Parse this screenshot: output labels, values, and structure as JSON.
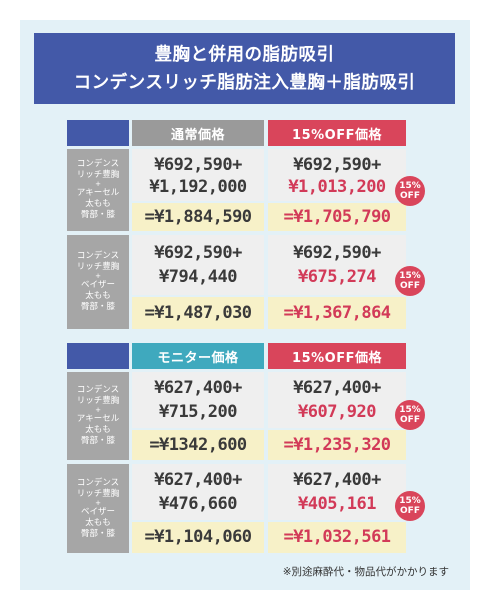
{
  "title": {
    "line1": "豊胸と併用の脂肪吸引",
    "line2": "コンデンスリッチ脂肪注入豊胸＋脂肪吸引"
  },
  "tables": [
    {
      "col_normal": "通常価格",
      "col_discount": "15%OFF価格",
      "rows": [
        {
          "label": [
            "コンデンス",
            "リッチ豊胸",
            "+",
            "アキーセル",
            "太もも",
            "臀部・膝"
          ],
          "normal": [
            "¥692,590+",
            "¥1,192,000"
          ],
          "normal_total": "=¥1,884,590",
          "discount": [
            "¥692,590+",
            "¥1,013,200"
          ],
          "discount_total": "=¥1,705,790",
          "badge": [
            "15%",
            "OFF"
          ]
        },
        {
          "label": [
            "コンデンス",
            "リッチ豊胸",
            "+",
            "ベイザー",
            "太もも",
            "臀部・膝"
          ],
          "normal": [
            "¥692,590+",
            "¥794,440"
          ],
          "normal_total": "=¥1,487,030",
          "discount": [
            "¥692,590+",
            "¥675,274"
          ],
          "discount_total": "=¥1,367,864",
          "badge": [
            "15%",
            "OFF"
          ]
        }
      ]
    },
    {
      "col_normal": "モニター価格",
      "col_discount": "15%OFF価格",
      "rows": [
        {
          "label": [
            "コンデンス",
            "リッチ豊胸",
            "+",
            "アキーセル",
            "太もも",
            "臀部・膝"
          ],
          "normal": [
            "¥627,400+",
            "¥715,200"
          ],
          "normal_total": "=¥1342,600",
          "discount": [
            "¥627,400+",
            "¥607,920"
          ],
          "discount_total": "=¥1,235,320",
          "badge": [
            "15%",
            "OFF"
          ]
        },
        {
          "label": [
            "コンデンス",
            "リッチ豊胸",
            "+",
            "ベイザー",
            "太もも",
            "臀部・膝"
          ],
          "normal": [
            "¥627,400+",
            "¥476,660"
          ],
          "normal_total": "=¥1,104,060",
          "discount": [
            "¥627,400+",
            "¥405,161"
          ],
          "discount_total": "=¥1,032,561",
          "badge": [
            "15%",
            "OFF"
          ]
        }
      ]
    }
  ],
  "note": "※別途麻酔代・物品代がかかります"
}
